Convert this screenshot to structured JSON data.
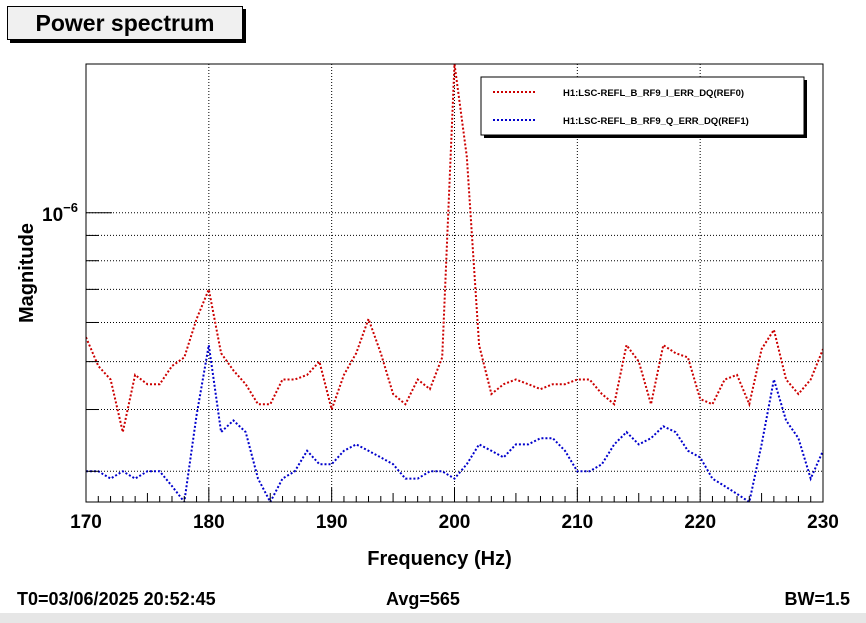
{
  "window": {
    "title": "Power spectrum"
  },
  "footer": {
    "t0": "T0=03/06/2025 20:52:45",
    "avg": "Avg=565",
    "bw": "BW=1.5"
  },
  "colors": {
    "ref0": "#cc0000",
    "ref1": "#0000cc"
  },
  "chart_data": {
    "type": "line",
    "title": "Power spectrum",
    "xlabel": "Frequency (Hz)",
    "ylabel": "Magnitude",
    "xlim": [
      170,
      230
    ],
    "ylim": [
      2.6e-07,
      2e-06
    ],
    "yscale": "log",
    "grid": true,
    "legend_position": "top-right",
    "x_ticks": [
      170,
      180,
      190,
      200,
      210,
      220,
      230
    ],
    "x_tick_labels": [
      "170",
      "180",
      "190",
      "200",
      "210",
      "220",
      "230"
    ],
    "y_tick_label_mantissa": "10",
    "y_tick_label_exponent": "−6",
    "y_tick_value": 1e-06,
    "x": [
      170,
      171,
      172,
      173,
      174,
      175,
      176,
      177,
      178,
      179,
      180,
      181,
      182,
      183,
      184,
      185,
      186,
      187,
      188,
      189,
      190,
      191,
      192,
      193,
      194,
      195,
      196,
      197,
      198,
      199,
      200,
      201,
      202,
      203,
      204,
      205,
      206,
      207,
      208,
      209,
      210,
      211,
      212,
      213,
      214,
      215,
      216,
      217,
      218,
      219,
      220,
      221,
      222,
      223,
      224,
      225,
      226,
      227,
      228,
      229,
      230
    ],
    "series": [
      {
        "name": "H1:LSC-REFL_B_RF9_I_ERR_DQ(REF0)",
        "color": "#cc0000",
        "values": [
          5.6e-07,
          4.9e-07,
          4.6e-07,
          3.6e-07,
          4.7e-07,
          4.5e-07,
          4.5e-07,
          4.9e-07,
          5.1e-07,
          6.1e-07,
          7e-07,
          5.2e-07,
          4.8e-07,
          4.5e-07,
          4.1e-07,
          4.1e-07,
          4.6e-07,
          4.6e-07,
          4.7e-07,
          5e-07,
          4e-07,
          4.7e-07,
          5.2e-07,
          6.1e-07,
          5.2e-07,
          4.3e-07,
          4.1e-07,
          4.6e-07,
          4.4e-07,
          5.1e-07,
          2e-06,
          1.3e-06,
          5.4e-07,
          4.3e-07,
          4.5e-07,
          4.6e-07,
          4.5e-07,
          4.4e-07,
          4.5e-07,
          4.5e-07,
          4.6e-07,
          4.6e-07,
          4.3e-07,
          4.1e-07,
          5.4e-07,
          5e-07,
          4.1e-07,
          5.4e-07,
          5.2e-07,
          5.1e-07,
          4.2e-07,
          4.1e-07,
          4.6e-07,
          4.7e-07,
          4.1e-07,
          5.3e-07,
          5.8e-07,
          4.6e-07,
          4.3e-07,
          4.6e-07,
          5.3e-07
        ]
      },
      {
        "name": "H1:LSC-REFL_B_RF9_Q_ERR_DQ(REF1)",
        "color": "#0000cc",
        "values": [
          3e-07,
          3e-07,
          2.9e-07,
          3e-07,
          2.9e-07,
          3e-07,
          3e-07,
          2.8e-07,
          2.6e-07,
          3.9e-07,
          5.4e-07,
          3.6e-07,
          3.8e-07,
          3.6e-07,
          2.9e-07,
          2.6e-07,
          2.9e-07,
          3e-07,
          3.3e-07,
          3.1e-07,
          3.1e-07,
          3.3e-07,
          3.4e-07,
          3.3e-07,
          3.2e-07,
          3.1e-07,
          2.9e-07,
          2.9e-07,
          3e-07,
          3e-07,
          2.9e-07,
          3.1e-07,
          3.4e-07,
          3.3e-07,
          3.2e-07,
          3.4e-07,
          3.4e-07,
          3.5e-07,
          3.5e-07,
          3.3e-07,
          3e-07,
          3e-07,
          3.1e-07,
          3.4e-07,
          3.6e-07,
          3.4e-07,
          3.5e-07,
          3.7e-07,
          3.6e-07,
          3.3e-07,
          3.2e-07,
          2.9e-07,
          2.8e-07,
          2.7e-07,
          2.6e-07,
          3.4e-07,
          4.6e-07,
          3.8e-07,
          3.5e-07,
          2.9e-07,
          3.3e-07
        ]
      }
    ]
  }
}
